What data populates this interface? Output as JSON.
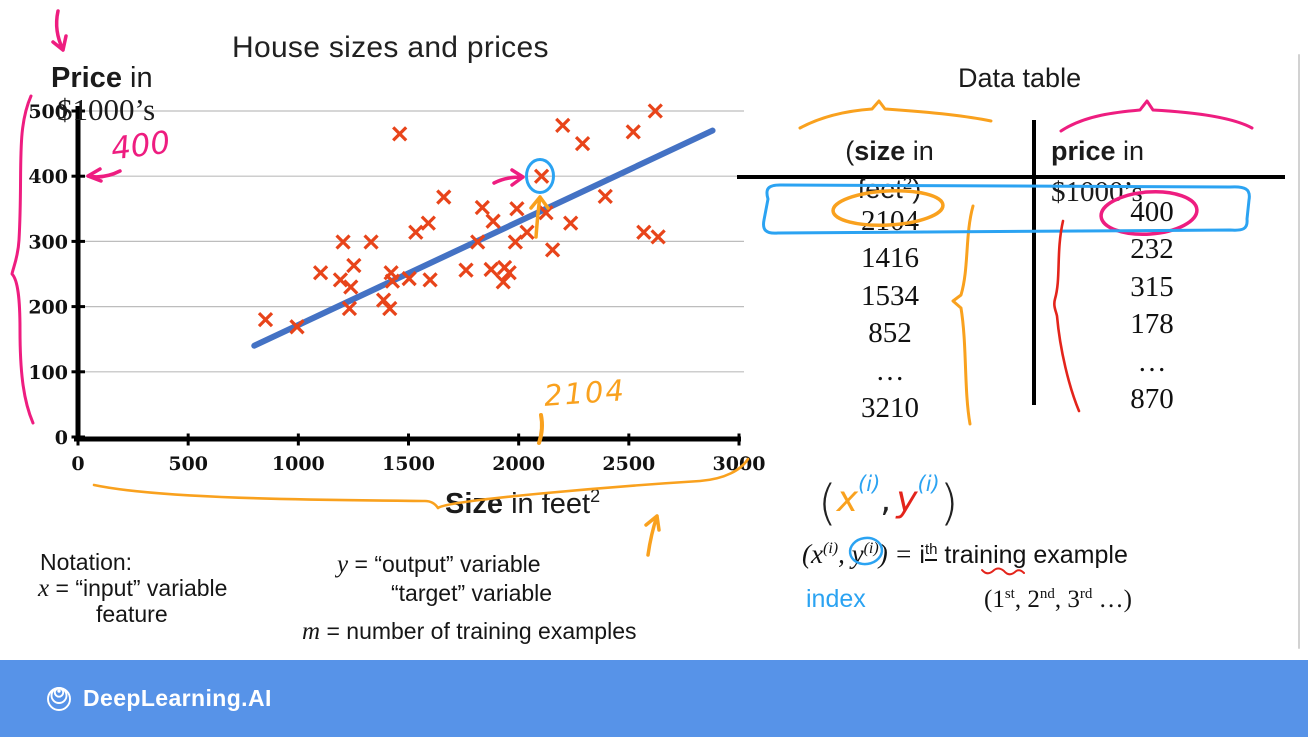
{
  "slide": {
    "title": "House sizes and prices",
    "footer_brand": "DeepLearning.AI",
    "footer_bg": "#5793E8"
  },
  "axes": {
    "y_bold": "Price",
    "y_rest": " in",
    "y_line2": "$1000’s",
    "x_bold": "Size",
    "x_rest": " in feet",
    "x_sup": "2"
  },
  "chart_data": {
    "type": "scatter",
    "title": "House sizes and prices",
    "xlabel": "Size in feet²",
    "ylabel": "Price in $1000’s",
    "xlim": [
      0,
      3000
    ],
    "ylim": [
      0,
      500
    ],
    "x_ticks": [
      0,
      500,
      1000,
      1500,
      2000,
      2500,
      3000
    ],
    "y_ticks": [
      0,
      100,
      200,
      300,
      400,
      500
    ],
    "grid": "horizontal-only",
    "legend": "none",
    "marker": "x",
    "marker_color": "#E8441A",
    "trend_line": {
      "x1": 800,
      "y1": 140,
      "x2": 2880,
      "y2": 470,
      "color": "#4472C4"
    },
    "highlighted_point": {
      "x": 2104,
      "y": 400,
      "note": "circled in blue ink, pink arrow from left, orange arrow from below"
    },
    "points": [
      [
        1460,
        465
      ],
      [
        2200,
        478
      ],
      [
        2620,
        500
      ],
      [
        2290,
        450
      ],
      [
        2520,
        468
      ],
      [
        2104,
        400
      ],
      [
        1660,
        368
      ],
      [
        1835,
        352
      ],
      [
        1992,
        350
      ],
      [
        2124,
        344
      ],
      [
        1884,
        331
      ],
      [
        1590,
        328
      ],
      [
        1533,
        314
      ],
      [
        2038,
        314
      ],
      [
        2236,
        328
      ],
      [
        2393,
        369
      ],
      [
        2568,
        314
      ],
      [
        2633,
        307
      ],
      [
        1203,
        299
      ],
      [
        1330,
        299
      ],
      [
        1814,
        299
      ],
      [
        1985,
        299
      ],
      [
        2154,
        287
      ],
      [
        1101,
        252
      ],
      [
        1252,
        263
      ],
      [
        1191,
        241
      ],
      [
        1238,
        230
      ],
      [
        1421,
        252
      ],
      [
        1427,
        239
      ],
      [
        1503,
        243
      ],
      [
        1598,
        241
      ],
      [
        1761,
        256
      ],
      [
        1875,
        257
      ],
      [
        1936,
        260
      ],
      [
        1957,
        252
      ],
      [
        1930,
        238
      ],
      [
        1387,
        210
      ],
      [
        1415,
        197
      ],
      [
        1232,
        197
      ],
      [
        851,
        180
      ],
      [
        994,
        169
      ]
    ]
  },
  "table": {
    "title": "Data table",
    "size_header": {
      "pre": "(",
      "bold": "size",
      "rest": " in",
      "line2_pre": "feet",
      "line2_sup": "2",
      "line2_post": ")"
    },
    "price_header": {
      "bold": "price",
      "rest": " in",
      "line2": "$1000’s"
    },
    "rows": [
      {
        "size": "2104",
        "price": "400"
      },
      {
        "size": "1416",
        "price": "232"
      },
      {
        "size": "1534",
        "price": "315"
      },
      {
        "size": "852",
        "price": "178"
      },
      {
        "size": "…",
        "price": "…"
      },
      {
        "size": "3210",
        "price": "870"
      }
    ]
  },
  "annotations": {
    "handwritten_y_value": "400",
    "handwritten_x_value": "2104",
    "colors": {
      "pink": "#EE1D80",
      "orange": "#F9A11E",
      "blue": "#2BA3F2",
      "red": "#E3241B"
    }
  },
  "notation": {
    "heading": "Notation:",
    "x_var": "x",
    "x_def": " = “input” variable",
    "x_sub": "feature",
    "y_var": "y",
    "y_def": " = “output” variable",
    "y_sub": "“target” variable",
    "m_var": "m",
    "m_def": " = number of training examples"
  },
  "example": {
    "hw_open": "(",
    "hw_x": "x",
    "hw_sup1": "(i)",
    "hw_comma": ",",
    "hw_y": "y",
    "hw_sup2": "(i)",
    "hw_close": ")",
    "f_open": "(x",
    "f_sup1": "(i)",
    "f_mid": ", y",
    "f_sup2": "(i)",
    "f_close": ") = ",
    "f_i": "i",
    "f_th": "th",
    "f_rest": " training example",
    "index_label": "index",
    "ord_1": "(1",
    "ord_1s": "st",
    "ord_2": ", 2",
    "ord_2s": "nd",
    "ord_3": ", 3",
    "ord_3s": "rd",
    "ord_end": " …)"
  }
}
